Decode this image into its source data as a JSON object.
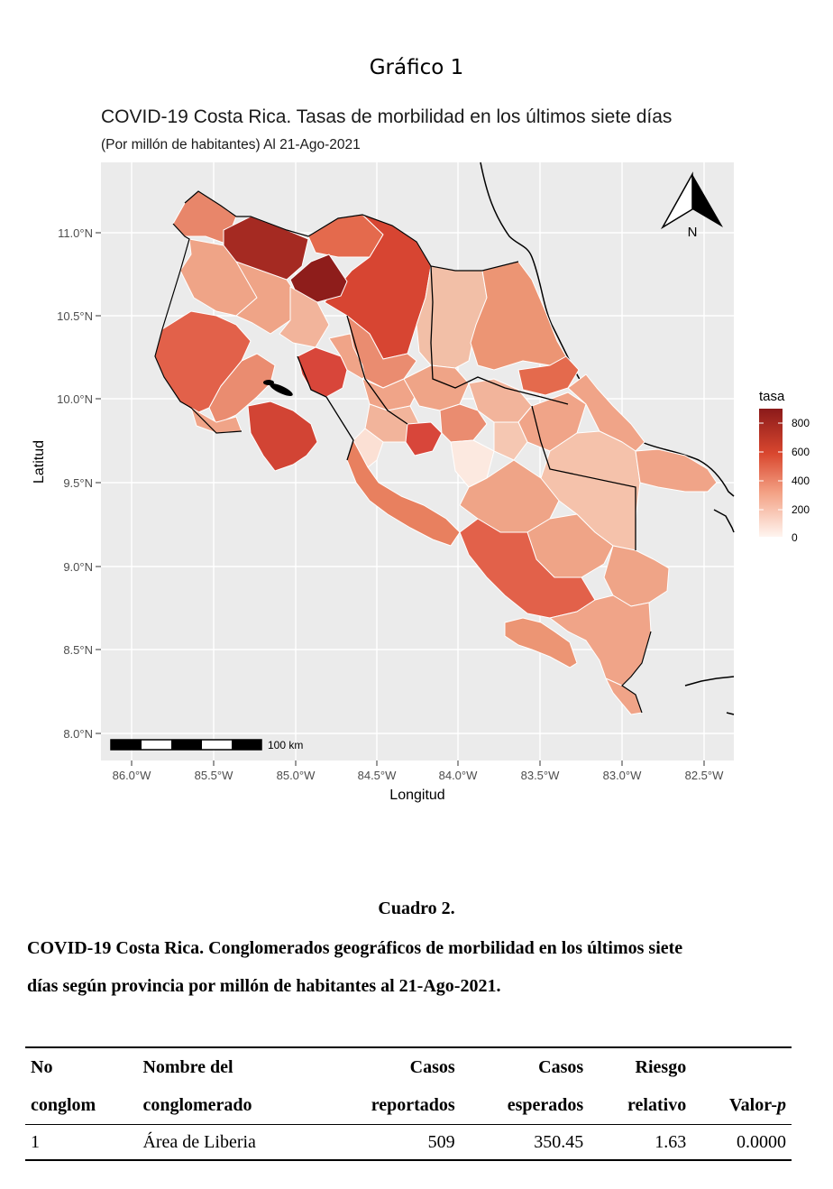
{
  "figure": {
    "caption": "Gráfico 1",
    "title": "COVID-19 Costa Rica. Tasas de morbilidad en los últimos siete días",
    "subtitle": "(Por millón de habitantes) Al 21-Ago-2021",
    "x_axis_label": "Longitud",
    "y_axis_label": "Latitud",
    "x_ticks": [
      "86.0°W",
      "85.5°W",
      "85.0°W",
      "84.5°W",
      "84.0°W",
      "83.5°W",
      "83.0°W",
      "82.5°W"
    ],
    "y_ticks": [
      "11.0°N",
      "10.5°N",
      "10.0°N",
      "9.5°N",
      "9.0°N",
      "8.5°N",
      "8.0°N"
    ],
    "legend": {
      "title": "tasa",
      "ticks": [
        "800",
        "600",
        "400",
        "200",
        "0"
      ]
    },
    "scale_bar_label": "100 km",
    "north_arrow_label": "N",
    "colors": {
      "panel": "#ebebeb",
      "gridline": "#ffffff",
      "low": "#fff5f0",
      "high": "#8b1a1a"
    }
  },
  "table": {
    "caption": "Cuadro 2.",
    "description_line1": "COVID-19 Costa Rica. Conglomerados geográficos de morbilidad en los últimos siete",
    "description_line2": "días según provincia por millón de habitantes al 21-Ago-2021.",
    "headers": {
      "col1_line1": "No",
      "col1_line2": "conglom",
      "col2_line1": "Nombre del",
      "col2_line2": "conglomerado",
      "col3_line1": "Casos",
      "col3_line2": "reportados",
      "col4_line1": "Casos",
      "col4_line2": "esperados",
      "col5_line1": "Riesgo",
      "col5_line2": "relativo",
      "col6_line2": "Valor-",
      "col6_italic": "p"
    },
    "rows": [
      {
        "no": "1",
        "name": "Área de Liberia",
        "reported": "509",
        "expected": "350.45",
        "rr": "1.63",
        "p": "0.0000"
      }
    ]
  }
}
